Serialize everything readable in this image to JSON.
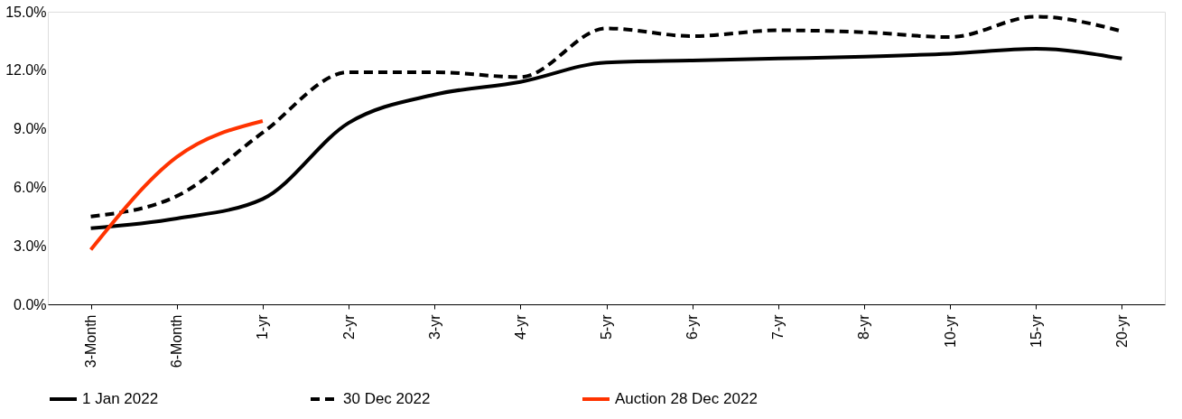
{
  "chart_data": {
    "type": "line",
    "categories": [
      "3-Month",
      "6-Month",
      "1-yr",
      "2-yr",
      "3-yr",
      "4-yr",
      "5-yr",
      "6-yr",
      "7-yr",
      "8-yr",
      "10-yr",
      "15-yr",
      "20-yr"
    ],
    "series": [
      {
        "name": "1 Jan 2022",
        "color": "#000000",
        "line_style": "solid",
        "values": [
          3.9,
          4.4,
          5.4,
          9.3,
          10.75,
          11.4,
          12.4,
          12.5,
          12.6,
          12.7,
          12.85,
          13.1,
          12.6
        ]
      },
      {
        "name": "30 Dec 2022",
        "color": "#000000",
        "line_style": "dashed",
        "values": [
          4.5,
          5.55,
          8.8,
          11.9,
          11.9,
          11.65,
          14.15,
          13.75,
          14.05,
          13.95,
          13.7,
          14.75,
          14.0
        ]
      },
      {
        "name": "Auction 28 Dec 2022",
        "color": "#ff3300",
        "line_style": "solid",
        "values": [
          2.8,
          7.55,
          9.4,
          null,
          null,
          null,
          null,
          null,
          null,
          null,
          null,
          null,
          null
        ]
      }
    ],
    "ylim": [
      0,
      15
    ],
    "yticks": [
      {
        "value": 0,
        "label": "0.0%"
      },
      {
        "value": 3,
        "label": "3.0%"
      },
      {
        "value": 6,
        "label": "6.0%"
      },
      {
        "value": 9,
        "label": "9.0%"
      },
      {
        "value": 12,
        "label": "12.0%"
      },
      {
        "value": 15,
        "label": "15.0%"
      }
    ],
    "grid": false,
    "legend": "bottom",
    "marker": "none"
  }
}
